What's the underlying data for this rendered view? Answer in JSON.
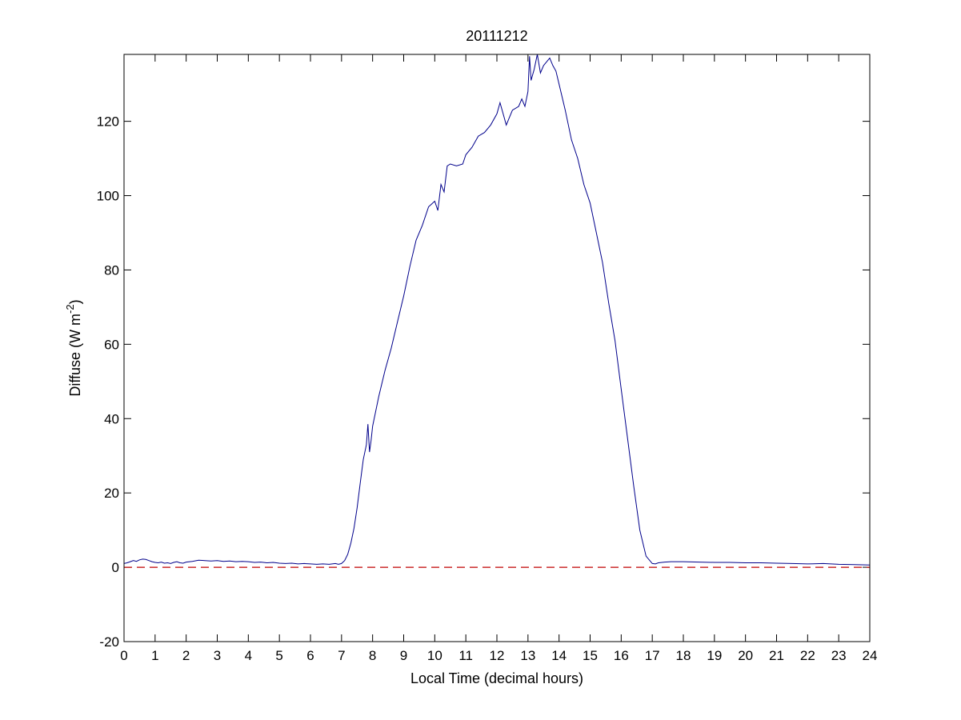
{
  "chart_data": {
    "type": "line",
    "title": "20111212",
    "xlabel": "Local Time (decimal hours)",
    "ylabel": {
      "prefix": "Diffuse (W m",
      "superscript": "-2",
      "suffix": ")"
    },
    "xlim": [
      0,
      24
    ],
    "ylim": [
      -20,
      138
    ],
    "xticks": [
      0,
      1,
      2,
      3,
      4,
      5,
      6,
      7,
      8,
      9,
      10,
      11,
      12,
      13,
      14,
      15,
      16,
      17,
      18,
      19,
      20,
      21,
      22,
      23,
      24
    ],
    "yticks": [
      -20,
      0,
      20,
      40,
      60,
      80,
      100,
      120
    ],
    "grid": false,
    "legend": "none",
    "colors": {
      "series": "#00008b",
      "reference": "#c00000",
      "axes": "#000000"
    },
    "reference_line": {
      "y": 0,
      "style": "dashed"
    },
    "series": [
      {
        "x": [
          0,
          0.1,
          0.2,
          0.3,
          0.4,
          0.5,
          0.6,
          0.7,
          0.8,
          0.9,
          1.0,
          1.1,
          1.2,
          1.3,
          1.4,
          1.5,
          1.6,
          1.7,
          1.8,
          1.9,
          2.0,
          2.2,
          2.4,
          2.6,
          2.8,
          3.0,
          3.2,
          3.4,
          3.6,
          3.8,
          4.0,
          4.2,
          4.4,
          4.6,
          4.8,
          5.0,
          5.2,
          5.4,
          5.6,
          5.8,
          6.0,
          6.2,
          6.4,
          6.6,
          6.8,
          6.9,
          7.0,
          7.1,
          7.2,
          7.3,
          7.4,
          7.5,
          7.6,
          7.7,
          7.8,
          7.85,
          7.9,
          7.95,
          8.0,
          8.2,
          8.4,
          8.6,
          8.8,
          9.0,
          9.2,
          9.4,
          9.6,
          9.8,
          10.0,
          10.1,
          10.2,
          10.3,
          10.4,
          10.5,
          10.7,
          10.9,
          11.0,
          11.2,
          11.4,
          11.6,
          11.8,
          12.0,
          12.1,
          12.2,
          12.3,
          12.5,
          12.7,
          12.8,
          12.9,
          13.0,
          13.05,
          13.1,
          13.2,
          13.3,
          13.4,
          13.5,
          13.6,
          13.7,
          13.8,
          13.9,
          14.0,
          14.2,
          14.4,
          14.6,
          14.8,
          15.0,
          15.2,
          15.4,
          15.6,
          15.8,
          16.0,
          16.2,
          16.4,
          16.6,
          16.8,
          17.0,
          17.1,
          17.2,
          17.4,
          17.6,
          18.0,
          18.5,
          19.0,
          19.5,
          20.0,
          20.5,
          21.0,
          21.5,
          22.0,
          22.5,
          23.0,
          23.5,
          24.0
        ],
        "y": [
          1.0,
          1.2,
          1.5,
          1.8,
          1.6,
          2.0,
          2.2,
          2.1,
          1.8,
          1.5,
          1.3,
          1.2,
          1.4,
          1.1,
          1.2,
          1.0,
          1.3,
          1.5,
          1.2,
          1.1,
          1.4,
          1.6,
          1.9,
          1.8,
          1.7,
          1.8,
          1.6,
          1.7,
          1.5,
          1.6,
          1.5,
          1.3,
          1.4,
          1.2,
          1.3,
          1.1,
          1.0,
          1.1,
          0.9,
          1.0,
          0.9,
          0.8,
          0.9,
          0.8,
          1.0,
          0.8,
          1.0,
          1.8,
          3.5,
          6.5,
          10.5,
          16.0,
          22.5,
          29.0,
          33.0,
          38.5,
          31.0,
          34.0,
          38.0,
          46.0,
          53.0,
          59.0,
          66.0,
          73.0,
          81.0,
          88.0,
          92.0,
          97.0,
          98.5,
          96.0,
          103.0,
          101.0,
          108.0,
          108.5,
          108.0,
          108.5,
          111.0,
          113.0,
          116.0,
          117.0,
          119.0,
          122.0,
          125.0,
          122.0,
          119.0,
          123.0,
          124.0,
          126.0,
          124.0,
          128.0,
          137.5,
          131.0,
          134.0,
          138.0,
          133.0,
          135.0,
          136.0,
          137.0,
          135.0,
          133.5,
          130.0,
          123.0,
          115.0,
          110.0,
          103.0,
          98.0,
          90.0,
          82.0,
          71.0,
          61.0,
          48.0,
          35.0,
          22.0,
          10.0,
          3.0,
          1.0,
          0.9,
          1.2,
          1.4,
          1.5,
          1.5,
          1.4,
          1.3,
          1.3,
          1.2,
          1.2,
          1.1,
          1.0,
          0.9,
          1.0,
          0.8,
          0.7,
          0.6
        ]
      }
    ]
  }
}
